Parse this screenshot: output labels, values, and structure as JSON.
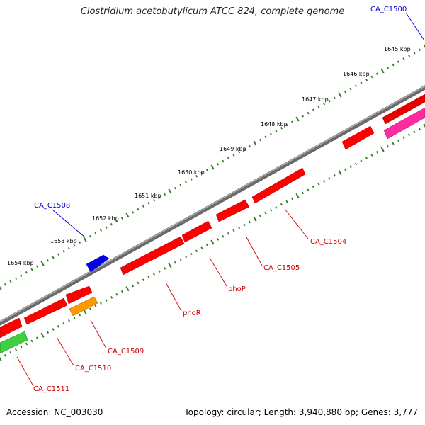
{
  "title": "Clostridium acetobutylicum ATCC 824, complete genome",
  "accession_label": "Accession: NC_003030",
  "topology_label": "Topology: circular; Length: 3,940,880 bp; Genes: 3,777",
  "colors": {
    "backbone": "#7f7f7f",
    "tick": "#2e7d1e",
    "tick_label": "#000000",
    "gene_red": "#ff0000",
    "gene_blue": "#0000ff",
    "gene_orange": "#ff8c00",
    "gene_green": "#33cc33",
    "gene_magenta": "#ff1493",
    "label_red": "#cc0000",
    "label_blue": "#0000cc"
  },
  "scale_ticks": [
    "1645 kbp",
    "1646 kbp",
    "1647 kbp",
    "1648 kbp",
    "1649 kbp",
    "1650 kbp",
    "1651 kbp",
    "1652 kbp",
    "1653 kbp",
    "1654 kbp"
  ],
  "gene_labels": [
    {
      "text": "CA_C1500",
      "color": "blue"
    },
    {
      "text": "CA_C1508",
      "color": "blue"
    },
    {
      "text": "CA_C1504",
      "color": "red"
    },
    {
      "text": "CA_C1505",
      "color": "red"
    },
    {
      "text": "phoP",
      "color": "red"
    },
    {
      "text": "phoR",
      "color": "red"
    },
    {
      "text": "CA_C1509",
      "color": "red"
    },
    {
      "text": "CA_C1510",
      "color": "red"
    },
    {
      "text": "CA_C1511",
      "color": "red"
    }
  ]
}
